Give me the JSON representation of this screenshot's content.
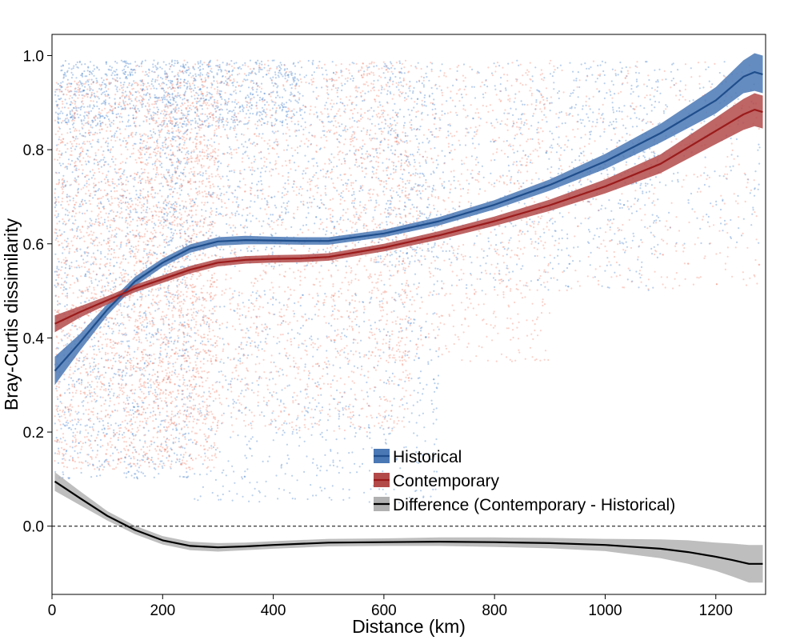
{
  "chart_data": {
    "type": "scatter",
    "xlabel": "Distance (km)",
    "ylabel": "Bray-Curtis dissimilarity",
    "xlim": [
      0,
      1290
    ],
    "ylim": [
      -0.145,
      1.045
    ],
    "xticks": [
      {
        "value": 0,
        "label": "0"
      },
      {
        "value": 200,
        "label": "200"
      },
      {
        "value": 400,
        "label": "400"
      },
      {
        "value": 600,
        "label": "600"
      },
      {
        "value": 800,
        "label": "800"
      },
      {
        "value": 1000,
        "label": "1000"
      },
      {
        "value": 1200,
        "label": "1200"
      }
    ],
    "yticks": [
      {
        "value": 0.0,
        "label": "0.0"
      },
      {
        "value": 0.2,
        "label": "0.2"
      },
      {
        "value": 0.4,
        "label": "0.4"
      },
      {
        "value": 0.6,
        "label": "0.6"
      },
      {
        "value": 0.8,
        "label": "0.8"
      },
      {
        "value": 1.0,
        "label": "1.0"
      }
    ],
    "grid": false,
    "reference_line": {
      "y": 0,
      "style": "dashed"
    },
    "legend_position": "bottom-center",
    "series": [
      {
        "name": "Historical",
        "line_color": "#1f4e8c",
        "band_color": "#4a78b5",
        "point_color": "#3a78c9",
        "x": [
          5,
          50,
          100,
          150,
          200,
          250,
          300,
          350,
          400,
          450,
          500,
          600,
          700,
          800,
          900,
          1000,
          1100,
          1200,
          1250,
          1270,
          1285
        ],
        "y": [
          0.33,
          0.39,
          0.46,
          0.52,
          0.56,
          0.59,
          0.605,
          0.608,
          0.607,
          0.606,
          0.606,
          0.622,
          0.648,
          0.683,
          0.725,
          0.775,
          0.835,
          0.905,
          0.955,
          0.965,
          0.96
        ],
        "band": [
          0.03,
          0.018,
          0.012,
          0.01,
          0.009,
          0.009,
          0.009,
          0.009,
          0.008,
          0.008,
          0.008,
          0.008,
          0.009,
          0.01,
          0.012,
          0.016,
          0.02,
          0.028,
          0.035,
          0.04,
          0.04
        ],
        "points": {
          "groups": [
            {
              "x_range": [
                5,
                450
              ],
              "y_range": [
                0.85,
                0.99
              ],
              "count": 700
            },
            {
              "x_range": [
                5,
                250
              ],
              "y_range": [
                0.1,
                0.99
              ],
              "count": 1600
            },
            {
              "x_range": [
                200,
                700
              ],
              "y_range": [
                0.55,
                0.99
              ],
              "count": 1200
            },
            {
              "x_range": [
                250,
                700
              ],
              "y_range": [
                0.05,
                0.5
              ],
              "count": 700
            },
            {
              "x_range": [
                600,
                1100
              ],
              "y_range": [
                0.5,
                0.99
              ],
              "count": 700
            },
            {
              "x_range": [
                900,
                1280
              ],
              "y_range": [
                0.6,
                0.99
              ],
              "count": 350
            }
          ]
        }
      },
      {
        "name": "Contemporary",
        "line_color": "#9b1b1b",
        "band_color": "#b34a4a",
        "point_color": "#f06a50",
        "x": [
          5,
          50,
          100,
          150,
          200,
          250,
          300,
          350,
          400,
          450,
          500,
          600,
          700,
          800,
          900,
          1000,
          1100,
          1200,
          1250,
          1270,
          1285
        ],
        "y": [
          0.43,
          0.455,
          0.48,
          0.505,
          0.525,
          0.545,
          0.56,
          0.566,
          0.568,
          0.569,
          0.572,
          0.592,
          0.618,
          0.648,
          0.682,
          0.722,
          0.77,
          0.84,
          0.875,
          0.885,
          0.88
        ],
        "band": [
          0.018,
          0.012,
          0.009,
          0.008,
          0.008,
          0.008,
          0.008,
          0.008,
          0.008,
          0.008,
          0.008,
          0.008,
          0.009,
          0.01,
          0.012,
          0.015,
          0.02,
          0.028,
          0.033,
          0.035,
          0.035
        ],
        "points": {
          "groups": [
            {
              "x_range": [
                5,
                300
              ],
              "y_range": [
                0.12,
                0.95
              ],
              "count": 2600
            },
            {
              "x_range": [
                150,
                650
              ],
              "y_range": [
                0.2,
                0.99
              ],
              "count": 2000
            },
            {
              "x_range": [
                500,
                900
              ],
              "y_range": [
                0.35,
                0.99
              ],
              "count": 1000
            },
            {
              "x_range": [
                800,
                1280
              ],
              "y_range": [
                0.5,
                0.99
              ],
              "count": 500
            }
          ]
        }
      },
      {
        "name": "Difference (Contemporary - Historical)",
        "line_color": "#000000",
        "band_color": "#a8a8a8",
        "x": [
          5,
          50,
          100,
          150,
          200,
          250,
          300,
          350,
          400,
          500,
          600,
          700,
          800,
          900,
          1000,
          1100,
          1150,
          1200,
          1230,
          1260,
          1285
        ],
        "y": [
          0.095,
          0.06,
          0.022,
          -0.008,
          -0.03,
          -0.042,
          -0.045,
          -0.043,
          -0.04,
          -0.035,
          -0.034,
          -0.033,
          -0.034,
          -0.036,
          -0.04,
          -0.048,
          -0.055,
          -0.065,
          -0.072,
          -0.08,
          -0.08
        ],
        "band": [
          0.02,
          0.015,
          0.01,
          0.009,
          0.009,
          0.009,
          0.009,
          0.008,
          0.008,
          0.008,
          0.008,
          0.009,
          0.01,
          0.011,
          0.013,
          0.02,
          0.025,
          0.03,
          0.035,
          0.04,
          0.04
        ]
      }
    ]
  }
}
